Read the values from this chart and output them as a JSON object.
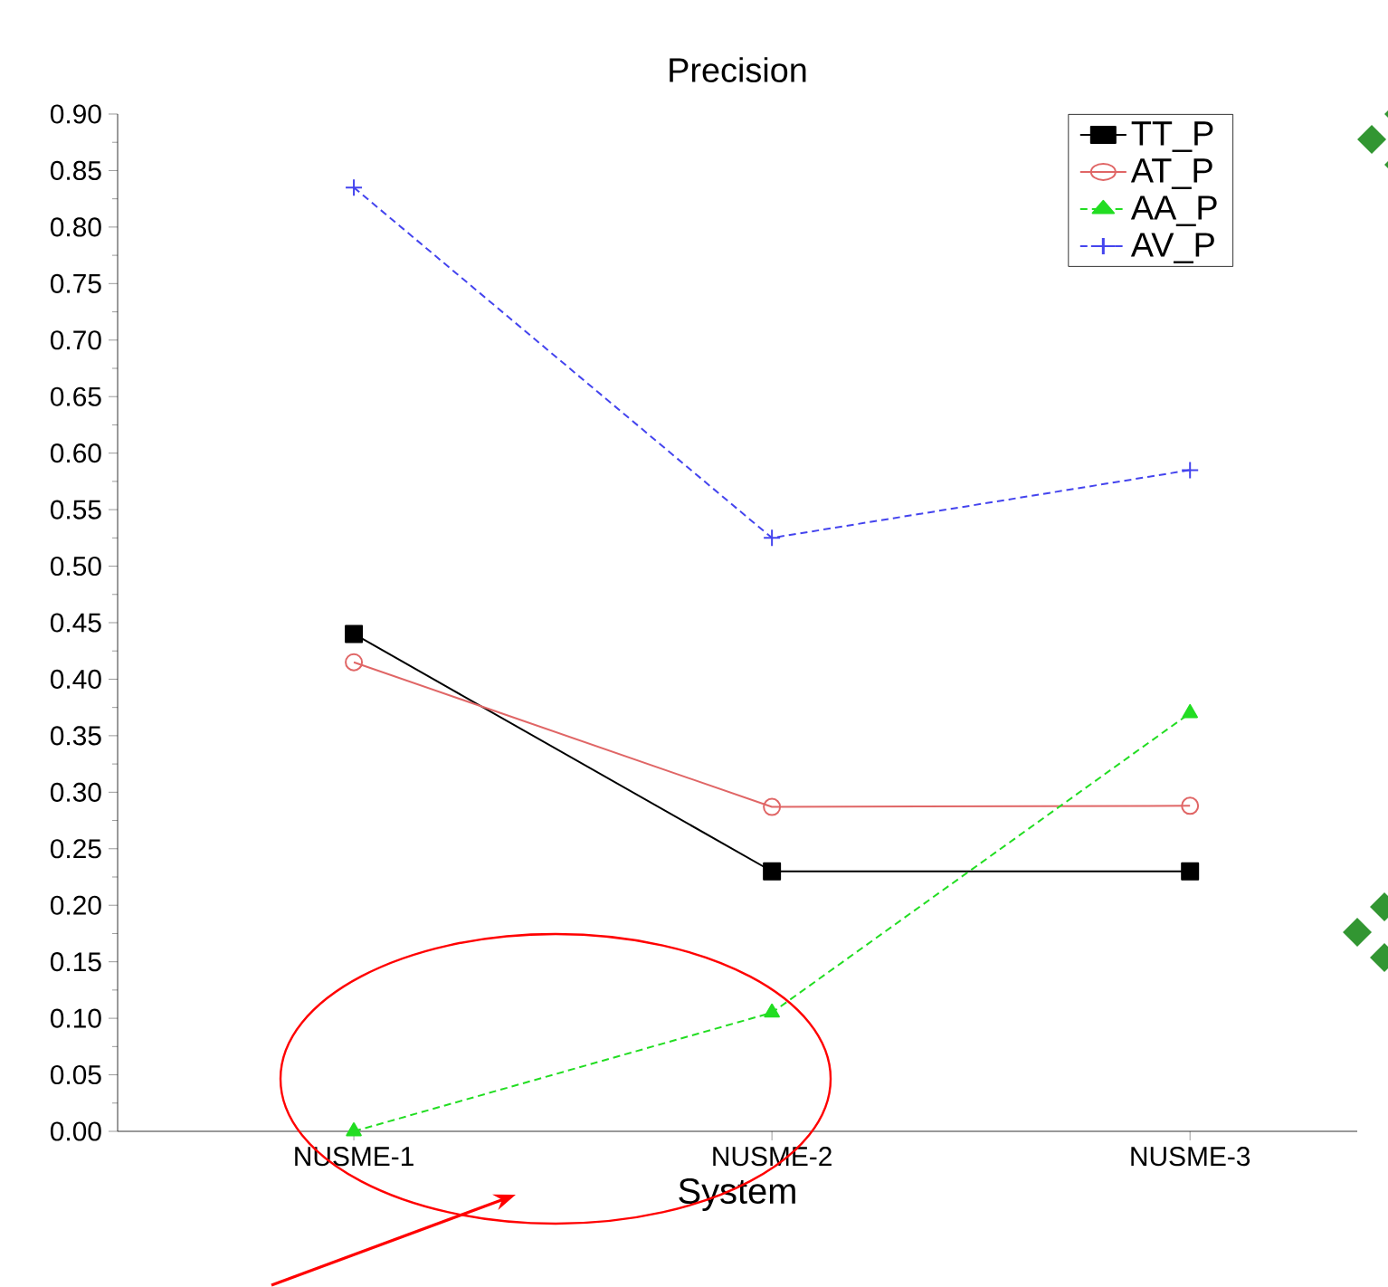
{
  "chart_data": {
    "type": "line",
    "title": "Precision",
    "xlabel": "System",
    "categories": [
      "NUSME-1",
      "NUSME-2",
      "NUSME-3"
    ],
    "series": [
      {
        "name": "TT_P",
        "color": "#000000",
        "marker": "square",
        "line_style": "solid",
        "values": [
          0.44,
          0.23,
          0.23
        ]
      },
      {
        "name": "AT_P",
        "color": "#e06666",
        "marker": "circle",
        "line_style": "solid",
        "values": [
          0.415,
          0.287,
          0.288
        ]
      },
      {
        "name": "AA_P",
        "color": "#22dd22",
        "marker": "triangle",
        "line_style": "dashed",
        "values": [
          0.0,
          0.105,
          0.37
        ]
      },
      {
        "name": "AV_P",
        "color": "#4444ee",
        "marker": "cross",
        "line_style": "dashed",
        "values": [
          0.835,
          0.525,
          0.585
        ]
      }
    ],
    "ylim": [
      0,
      0.9
    ],
    "yticks": [
      {
        "value": 0,
        "label": "0.00"
      },
      {
        "value": 0.05,
        "label": "0.05"
      },
      {
        "value": 0.1,
        "label": "0.10"
      },
      {
        "value": 0.15,
        "label": "0.15"
      },
      {
        "value": 0.2,
        "label": "0.20"
      },
      {
        "value": 0.25,
        "label": "0.25"
      },
      {
        "value": 0.3,
        "label": "0.30"
      },
      {
        "value": 0.35,
        "label": "0.35"
      },
      {
        "value": 0.4,
        "label": "0.40"
      },
      {
        "value": 0.45,
        "label": "0.45"
      },
      {
        "value": 0.5,
        "label": "0.50"
      },
      {
        "value": 0.55,
        "label": "0.55"
      },
      {
        "value": 0.6,
        "label": "0.60"
      },
      {
        "value": 0.65,
        "label": "0.65"
      },
      {
        "value": 0.7,
        "label": "0.70"
      },
      {
        "value": 0.75,
        "label": "0.75"
      },
      {
        "value": 0.8,
        "label": "0.80"
      },
      {
        "value": 0.85,
        "label": "0.85"
      },
      {
        "value": 0.9,
        "label": "0.90"
      }
    ],
    "grid": false,
    "legend": "top right"
  }
}
